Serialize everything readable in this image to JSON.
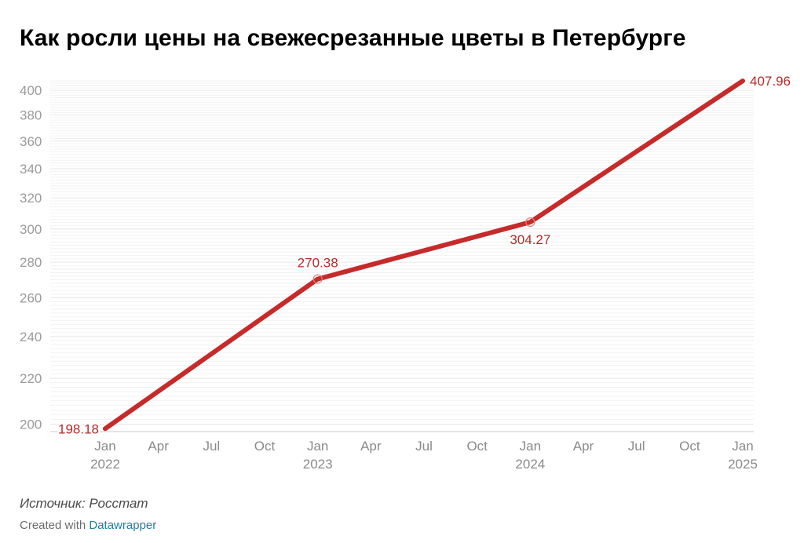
{
  "page": {
    "title": "Как росли цены на свежесрезанные цветы в Петербурге",
    "source": "Источник: Росстат",
    "credit_prefix": "Created with ",
    "credit_link": "Datawrapper"
  },
  "colors": {
    "line": "#c62a2a",
    "label": "#b52a2a",
    "grid": "#e6e6e6",
    "axis_text": "#9b9b9b"
  },
  "chart_data": {
    "type": "line",
    "title": "Как росли цены на свежесрезанные цветы в Петербурге",
    "xlabel": "",
    "ylabel": "",
    "y_scale": "log",
    "ylim": [
      197,
      410
    ],
    "yticks": [
      200,
      220,
      240,
      260,
      280,
      300,
      320,
      340,
      360,
      380,
      400
    ],
    "grid": true,
    "x_ticks": [
      {
        "line1": "Jan",
        "line2": "2022",
        "date": "2022-01"
      },
      {
        "line1": "Apr",
        "line2": "",
        "date": "2022-04"
      },
      {
        "line1": "Jul",
        "line2": "",
        "date": "2022-07"
      },
      {
        "line1": "Oct",
        "line2": "",
        "date": "2022-10"
      },
      {
        "line1": "Jan",
        "line2": "2023",
        "date": "2023-01"
      },
      {
        "line1": "Apr",
        "line2": "",
        "date": "2023-04"
      },
      {
        "line1": "Jul",
        "line2": "",
        "date": "2023-07"
      },
      {
        "line1": "Oct",
        "line2": "",
        "date": "2023-10"
      },
      {
        "line1": "Jan",
        "line2": "2024",
        "date": "2024-01"
      },
      {
        "line1": "Apr",
        "line2": "",
        "date": "2024-04"
      },
      {
        "line1": "Jul",
        "line2": "",
        "date": "2024-07"
      },
      {
        "line1": "Oct",
        "line2": "",
        "date": "2024-10"
      },
      {
        "line1": "Jan",
        "line2": "2025",
        "date": "2025-01"
      }
    ],
    "series": [
      {
        "points": [
          {
            "x": "2022-01",
            "y": 198.18,
            "label": "198.18",
            "label_position": "left"
          },
          {
            "x": "2023-01",
            "y": 270.38,
            "label": "270.38",
            "label_position": "above"
          },
          {
            "x": "2024-01",
            "y": 304.27,
            "label": "304.27",
            "label_position": "below"
          },
          {
            "x": "2025-01",
            "y": 407.96,
            "label": "407.96",
            "label_position": "right"
          }
        ]
      }
    ]
  }
}
